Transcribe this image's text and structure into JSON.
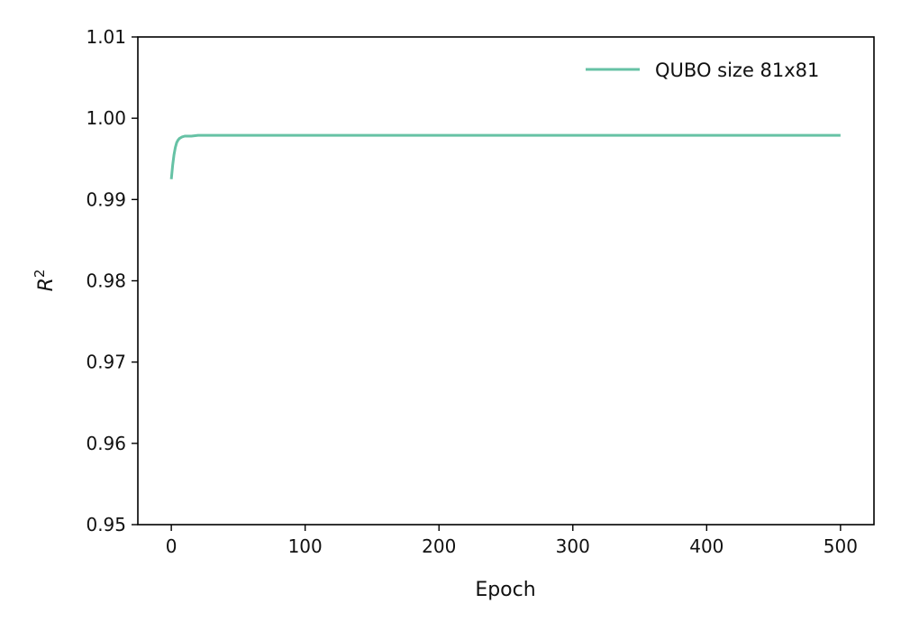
{
  "chart_data": {
    "type": "line",
    "title": "",
    "xlabel": "Epoch",
    "ylabel": "R",
    "ylabel_superscript": "2",
    "xlim": [
      -25,
      525
    ],
    "ylim": [
      0.95,
      1.01
    ],
    "x_ticks": [
      0,
      100,
      200,
      300,
      400,
      500
    ],
    "x_tick_labels": [
      "0",
      "100",
      "200",
      "300",
      "400",
      "500"
    ],
    "y_ticks": [
      0.95,
      0.96,
      0.97,
      0.98,
      0.99,
      1.0,
      1.01
    ],
    "y_tick_labels": [
      "0.95",
      "0.96",
      "0.97",
      "0.98",
      "0.99",
      "1.00",
      "1.01"
    ],
    "grid": false,
    "legend_position": "top-right",
    "series": [
      {
        "name": "QUBO size 81x81",
        "color": "#66c2a5",
        "x": [
          0,
          1,
          2,
          3,
          4,
          5,
          6,
          8,
          10,
          12,
          15,
          20,
          30,
          50,
          100,
          200,
          300,
          400,
          500
        ],
        "y": [
          0.9925,
          0.9942,
          0.9955,
          0.9964,
          0.997,
          0.9973,
          0.9975,
          0.9977,
          0.9978,
          0.9978,
          0.9978,
          0.9979,
          0.9979,
          0.9979,
          0.9979,
          0.9979,
          0.9979,
          0.9979,
          0.9979
        ]
      }
    ]
  }
}
